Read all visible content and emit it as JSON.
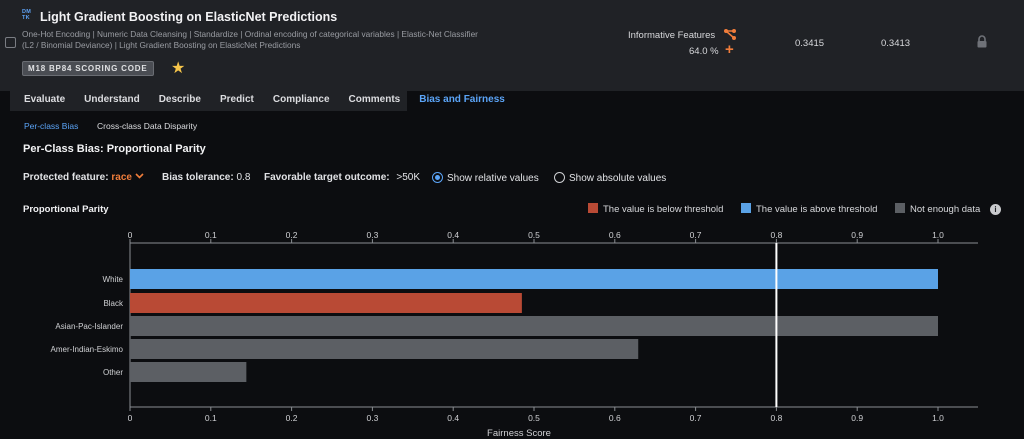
{
  "model": {
    "badge": "DM\nTK",
    "title": "Light Gradient Boosting on ElasticNet Predictions",
    "subtitle": "One-Hot Encoding | Numeric Data Cleansing | Standardize | Ordinal encoding of categorical variables | Elastic-Net Classifier (L2 / Binomial Deviance) | Light Gradient Boosting on ElasticNet Predictions",
    "code_badge": "M18  BP84  SCORING CODE",
    "starred": true,
    "feature_list": "Informative Features",
    "sample_pct": "64.0 %",
    "metric_1": "0.3415",
    "metric_2": "0.3413"
  },
  "tabs": [
    {
      "label": "Evaluate",
      "active": false
    },
    {
      "label": "Understand",
      "active": false
    },
    {
      "label": "Describe",
      "active": false
    },
    {
      "label": "Predict",
      "active": false
    },
    {
      "label": "Compliance",
      "active": false
    },
    {
      "label": "Comments",
      "active": false
    },
    {
      "label": "Bias and Fairness",
      "active": true
    }
  ],
  "subtabs": {
    "per_class": "Per-class Bias",
    "cross_class": "Cross-class Data Disparity"
  },
  "section_title": "Per-Class Bias: Proportional Parity",
  "controls": {
    "protected_feature_label": "Protected feature:",
    "protected_feature_value": "race",
    "bias_tolerance_label": "Bias tolerance:",
    "bias_tolerance_value": "0.8",
    "favorable_outcome_label": "Favorable target outcome:",
    "favorable_outcome_value": ">50K",
    "radio_relative": "Show relative values",
    "radio_absolute": "Show absolute values",
    "selected_radio": "relative"
  },
  "legend": [
    {
      "label": "The value is below threshold",
      "color": "#b94a35"
    },
    {
      "label": "The value is above threshold",
      "color": "#5aa2e6"
    },
    {
      "label": "Not enough data",
      "color": "#5c5f64"
    }
  ],
  "chart_data": {
    "type": "bar",
    "orientation": "horizontal",
    "title": "Proportional Parity",
    "xlabel": "Fairness Score",
    "xlim": [
      0,
      1
    ],
    "xticks": [
      "0",
      "0.1",
      "0.2",
      "0.3",
      "0.4",
      "0.5",
      "0.6",
      "0.7",
      "0.8",
      "0.9",
      "1.0"
    ],
    "threshold": 0.8,
    "categories": [
      "White",
      "Black",
      "Asian-Pac-Islander",
      "Amer-Indian-Eskimo",
      "Other"
    ],
    "values": [
      1.0,
      0.485,
      1.0,
      0.629,
      0.144
    ],
    "status": [
      "above",
      "below",
      "not_enough_data",
      "not_enough_data",
      "not_enough_data"
    ],
    "colors": {
      "above": "#5aa2e6",
      "below": "#b94a35",
      "not_enough_data": "#5c5f64"
    }
  }
}
